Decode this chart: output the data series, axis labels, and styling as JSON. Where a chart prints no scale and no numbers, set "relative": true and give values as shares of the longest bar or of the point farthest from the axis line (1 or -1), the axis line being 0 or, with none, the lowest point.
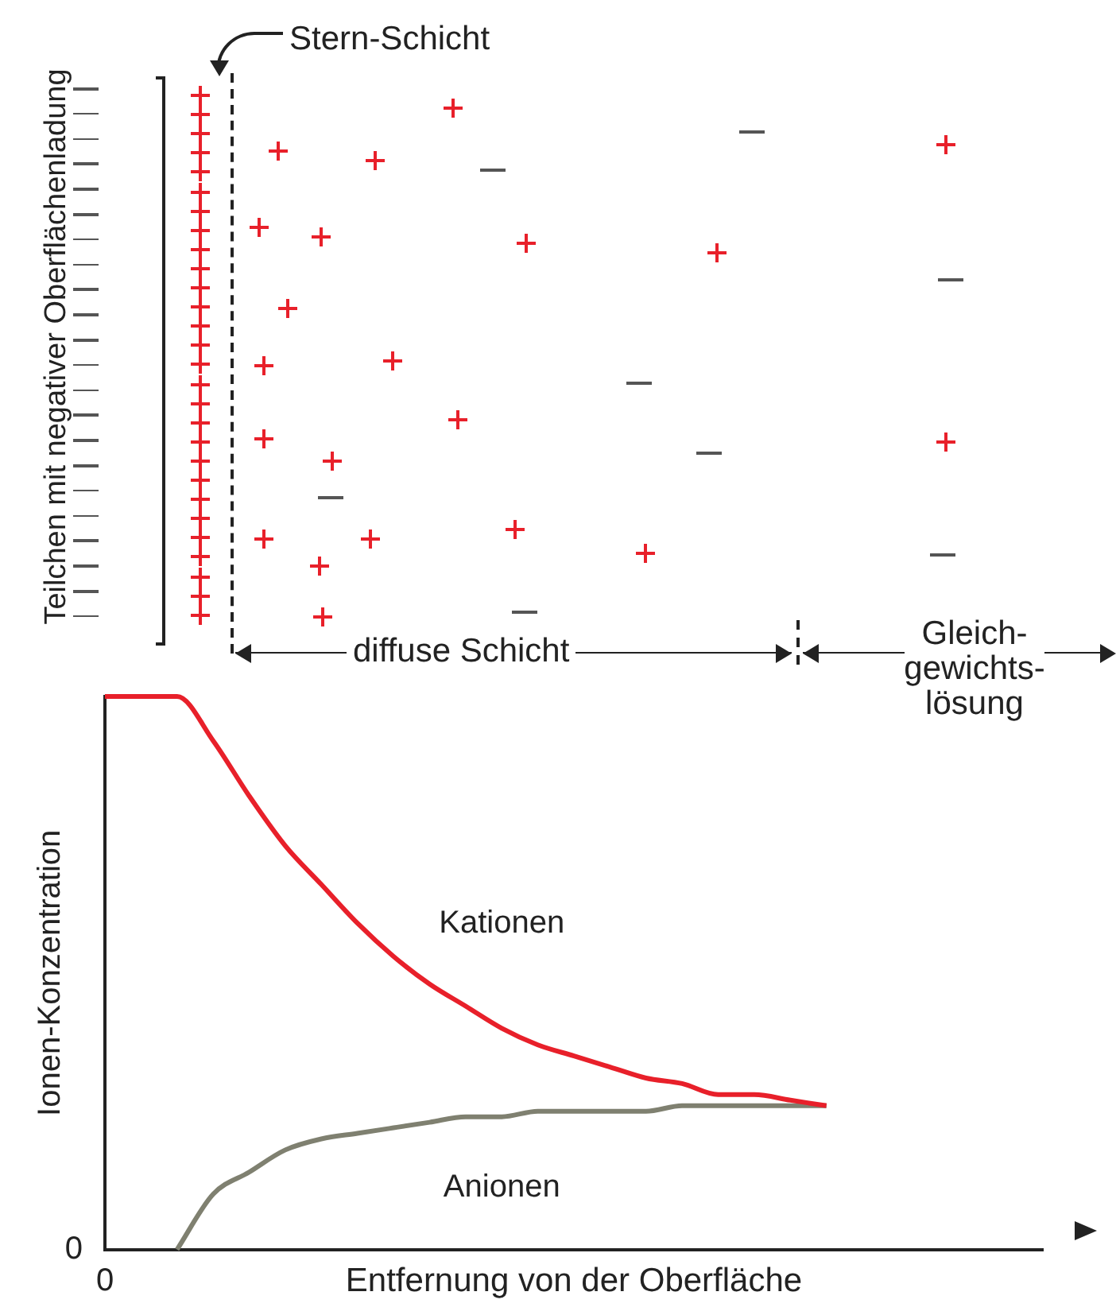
{
  "chart_data": {
    "type": "line",
    "relative": true,
    "xlabel": "Entfernung von der Oberfläche",
    "ylabel": "Ionen-Konzentration",
    "annotations": [
      "Stern-Schicht",
      "diffuse Schicht",
      "Gleich-\ngewichts-\nlösung",
      "Teilchen mit negativer Oberflächenladung",
      "0",
      "0"
    ],
    "categories": [
      null,
      null,
      null,
      null,
      null,
      null,
      null,
      null,
      null,
      null,
      null,
      null,
      null,
      null,
      null,
      null,
      null,
      null,
      null,
      null,
      null,
      null,
      null,
      null,
      null,
      null,
      null
    ],
    "series": [
      {
        "name": "Kationen",
        "color": "#e8202a",
        "values": [
          1,
          1,
          1,
          0.92,
          0.82,
          0.73,
          0.66,
          0.59,
          0.53,
          0.48,
          0.44,
          0.4,
          0.37,
          0.35,
          0.33,
          0.31,
          0.3,
          0.28,
          0.28,
          0.27,
          0.26,
          null,
          null,
          null,
          null,
          null,
          null
        ]
      },
      {
        "name": "Anionen",
        "color": "#7f8070",
        "values": [
          null,
          null,
          0,
          0.1,
          0.14,
          0.18,
          0.2,
          0.21,
          0.22,
          0.23,
          0.24,
          0.24,
          0.25,
          0.25,
          0.25,
          0.25,
          0.26,
          0.26,
          0.26,
          0.26,
          0.26,
          null,
          null,
          null,
          null,
          null,
          null
        ]
      }
    ],
    "grid": false,
    "legend": false,
    "marker": "none",
    "line_style": "solid"
  }
}
